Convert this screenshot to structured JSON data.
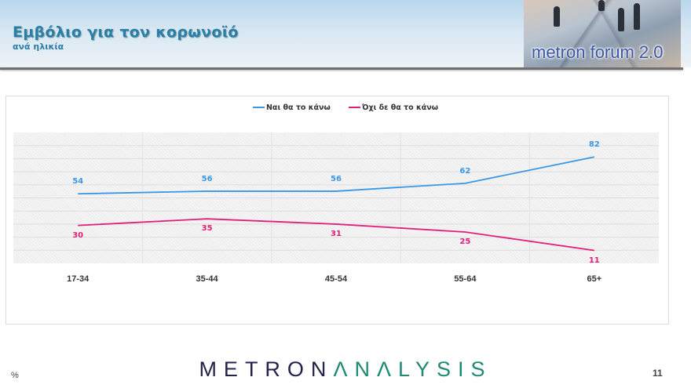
{
  "header": {
    "title": "Εμβόλιο για τον κορωνοϊό",
    "subtitle": "ανά ηλικία",
    "logo_text": "metron forum 2.0"
  },
  "legend": {
    "items": [
      {
        "label": "Ναι θα το κάνω",
        "color": "#3a96e8"
      },
      {
        "label": "Όχι δε θα το κάνω",
        "color": "#e0207a"
      }
    ]
  },
  "footer": {
    "unit": "%",
    "brand_part1": "METRON",
    "brand_part2": "ΛNΛLYSIS",
    "page_number": "11"
  },
  "chart_data": {
    "type": "line",
    "title": "Εμβόλιο για τον κορωνοϊό",
    "subtitle": "ανά ηλικία",
    "xlabel": "",
    "ylabel": "%",
    "categories": [
      "17-34",
      "35-44",
      "45-54",
      "55-64",
      "65+"
    ],
    "series": [
      {
        "name": "Ναι θα το κάνω",
        "color": "#3a96e8",
        "values": [
          54,
          56,
          56,
          62,
          82
        ]
      },
      {
        "name": "Όχι δε θα το κάνω",
        "color": "#e0207a",
        "values": [
          30,
          35,
          31,
          25,
          11
        ]
      }
    ],
    "grid": true,
    "legend_position": "top",
    "ylim": [
      0,
      100
    ],
    "data_labels": true
  }
}
